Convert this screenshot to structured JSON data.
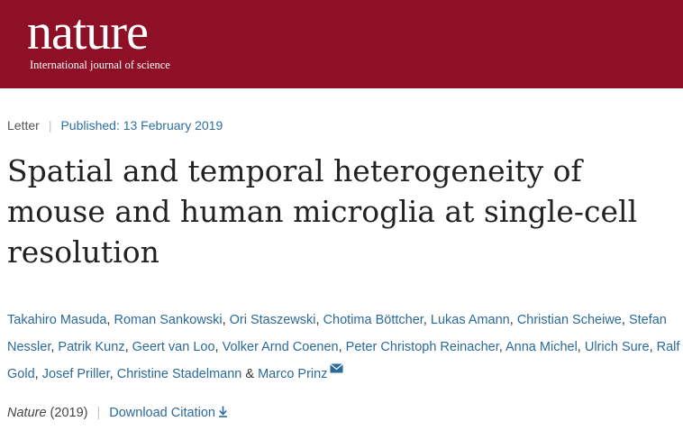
{
  "header": {
    "logo_word": "nature",
    "logo_tagline": "International journal of science",
    "background": "#8e1027"
  },
  "article_meta": {
    "type": "Letter",
    "published": "Published: 13 February 2019"
  },
  "title": "Spatial and temporal heterogeneity of mouse and human microglia at single-cell resolution",
  "authors": [
    "Takahiro Masuda",
    "Roman Sankowski",
    "Ori Staszewski",
    "Chotima Böttcher",
    "Lukas Amann",
    "Christian Scheiwe",
    "Stefan Nessler",
    "Patrik Kunz",
    "Geert van Loo",
    "Volker Arnd Coenen",
    "Peter Christoph Reinacher",
    "Anna Michel",
    "Ulrich Sure",
    "Ralf Gold",
    "Josef Priller",
    "Christine Stadelmann",
    "Marco Prinz"
  ],
  "author_separator": ", ",
  "author_last_separator": " & ",
  "corresponding_icon": "mail-icon",
  "citation": {
    "journal": "Nature",
    "year": " (2019)",
    "download_label": "Download Citation",
    "download_icon": "download-arrow-icon"
  },
  "colors": {
    "link": "#2b6a9a",
    "brand": "#8e1027"
  }
}
